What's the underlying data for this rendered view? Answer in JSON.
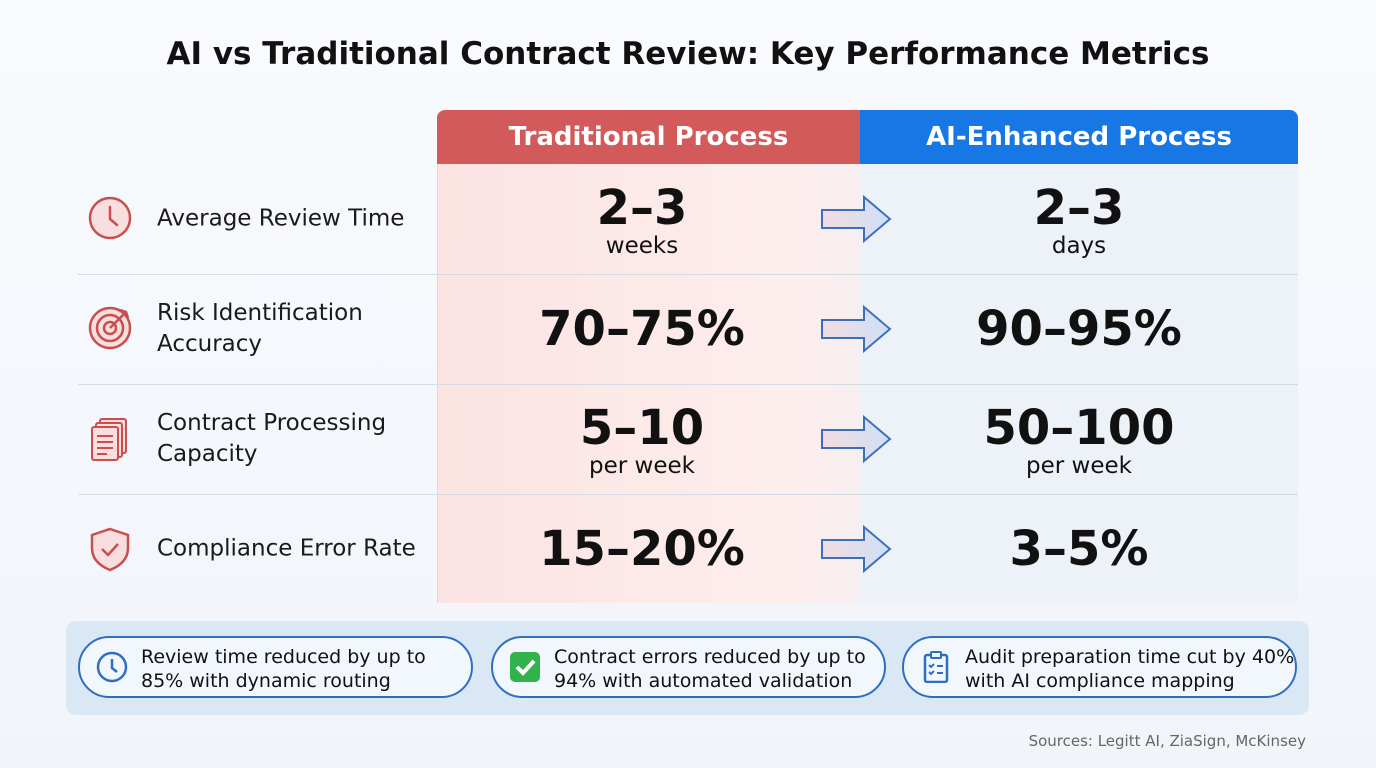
{
  "title": "AI vs Traditional Contract Review: Key Performance Metrics",
  "table": {
    "headers": [
      "Traditional Process",
      "AI-Enhanced Process"
    ],
    "rows": [
      {
        "metric": "Average Review Time",
        "traditional": {
          "value": "2–3",
          "unit": "weeks"
        },
        "ai": {
          "value": "2–3",
          "unit": "days"
        }
      },
      {
        "metric": "Risk Identification Accuracy",
        "traditional": {
          "value": "70–75%"
        },
        "ai": {
          "value": "90–95%"
        }
      },
      {
        "metric": "Contract Processing Capacity",
        "traditional": {
          "value": "5–10",
          "unit": "per week"
        },
        "ai": {
          "value": "50–100",
          "unit": "per week"
        }
      },
      {
        "metric": "Compliance Error Rate",
        "traditional": {
          "value": "15–20%"
        },
        "ai": {
          "value": "3–5%"
        }
      }
    ]
  },
  "highlights": [
    "Review time reduced by up to 85% with dynamic routing",
    "Contract errors reduced by up to 94% with automated validation",
    "Audit preparation time cut by 40% with AI compliance mapping"
  ],
  "sources": "Sources: Legitt AI, ZiaSign, McKinsey"
}
